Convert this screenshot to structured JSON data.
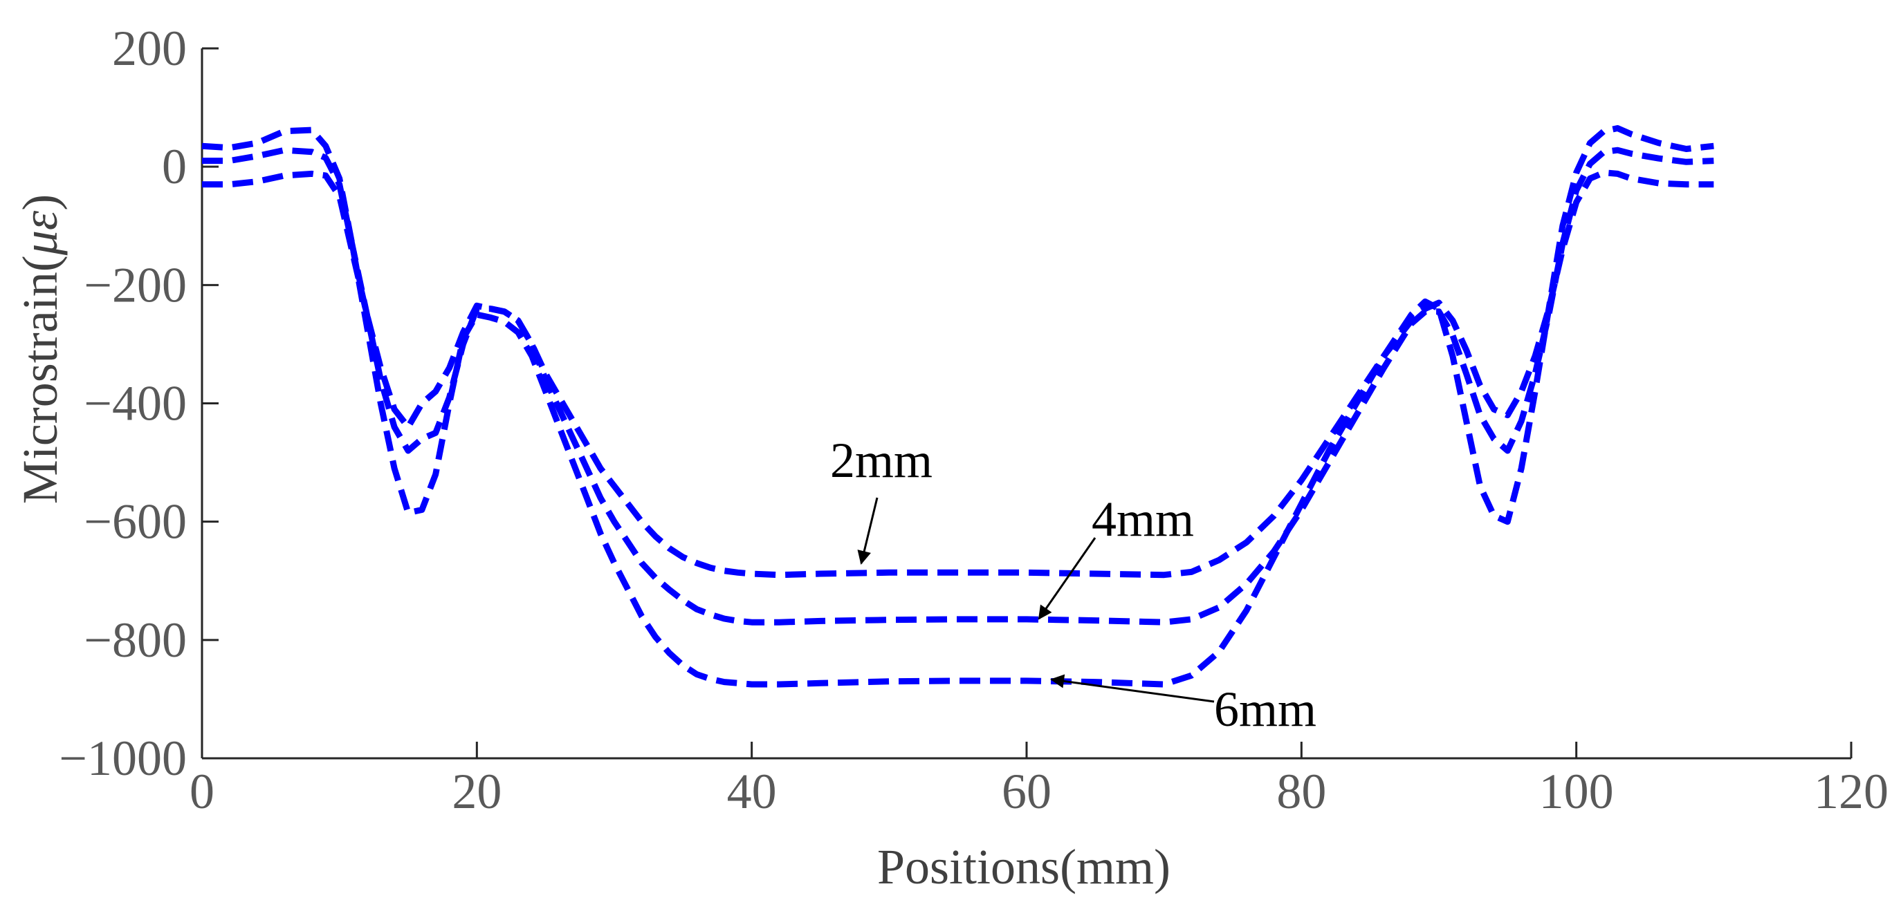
{
  "chart_data": {
    "type": "line",
    "title": "",
    "xlabel": "Positions(mm)",
    "ylabel": "Microstrain(",
    "ylabel_symbol": "με",
    "ylabel_close": ")",
    "xlim": [
      0,
      120
    ],
    "ylim": [
      -1000,
      200
    ],
    "xticks": [
      0,
      20,
      40,
      60,
      80,
      100,
      120
    ],
    "yticks": [
      200,
      0,
      -200,
      -400,
      -600,
      -800,
      -1000
    ],
    "xtick_labels": [
      "0",
      "20",
      "40",
      "60",
      "80",
      "100",
      "120"
    ],
    "ytick_labels": [
      "200",
      "0",
      "−200",
      "−400",
      "−600",
      "−800",
      "−1000"
    ],
    "grid": false,
    "line_color": "#0000ff",
    "line_style": "dashed",
    "series": [
      {
        "name": "2mm",
        "x": [
          0,
          2,
          4,
          6,
          8,
          9,
          10,
          11,
          12,
          13,
          14,
          15,
          16,
          17,
          18,
          19,
          20,
          21,
          22,
          23,
          24,
          25,
          26,
          27,
          28,
          29,
          30,
          31,
          32,
          33,
          34,
          35,
          36,
          37,
          38,
          39,
          40,
          42,
          45,
          50,
          55,
          60,
          65,
          70,
          72,
          74,
          76,
          78,
          80,
          82,
          84,
          86,
          88,
          89,
          90,
          91,
          92,
          93,
          94,
          95,
          96,
          97,
          98,
          99,
          100,
          101,
          102,
          103,
          104,
          106,
          108,
          110
        ],
        "y": [
          -30,
          -30,
          -25,
          -15,
          -12,
          -15,
          -50,
          -150,
          -250,
          -340,
          -410,
          -440,
          -400,
          -380,
          -340,
          -280,
          -235,
          -240,
          -245,
          -260,
          -300,
          -350,
          -390,
          -430,
          -470,
          -510,
          -540,
          -570,
          -600,
          -625,
          -645,
          -660,
          -670,
          -678,
          -683,
          -686,
          -688,
          -690,
          -688,
          -686,
          -686,
          -686,
          -688,
          -690,
          -685,
          -665,
          -635,
          -590,
          -530,
          -460,
          -390,
          -320,
          -260,
          -240,
          -230,
          -260,
          -310,
          -370,
          -410,
          -420,
          -380,
          -320,
          -240,
          -140,
          -60,
          -20,
          -10,
          -12,
          -20,
          -28,
          -30,
          -30
        ]
      },
      {
        "name": "4mm",
        "x": [
          0,
          2,
          4,
          6,
          8,
          9,
          10,
          11,
          12,
          13,
          14,
          15,
          16,
          17,
          18,
          19,
          20,
          21,
          22,
          23,
          24,
          25,
          26,
          27,
          28,
          29,
          30,
          31,
          32,
          33,
          34,
          35,
          36,
          37,
          38,
          39,
          40,
          42,
          45,
          50,
          55,
          60,
          65,
          70,
          72,
          74,
          76,
          78,
          80,
          82,
          84,
          86,
          88,
          89,
          90,
          91,
          92,
          93,
          94,
          95,
          96,
          97,
          98,
          99,
          100,
          101,
          102,
          103,
          104,
          106,
          108,
          110
        ],
        "y": [
          10,
          10,
          18,
          28,
          25,
          15,
          -30,
          -140,
          -250,
          -360,
          -440,
          -480,
          -460,
          -450,
          -390,
          -300,
          -240,
          -240,
          -245,
          -260,
          -300,
          -360,
          -410,
          -460,
          -510,
          -560,
          -600,
          -635,
          -670,
          -695,
          -715,
          -733,
          -748,
          -757,
          -764,
          -768,
          -770,
          -770,
          -768,
          -766,
          -765,
          -765,
          -767,
          -770,
          -765,
          -745,
          -705,
          -650,
          -580,
          -500,
          -420,
          -340,
          -265,
          -245,
          -245,
          -285,
          -350,
          -420,
          -460,
          -480,
          -430,
          -350,
          -250,
          -130,
          -40,
          5,
          25,
          28,
          22,
          14,
          8,
          10
        ]
      },
      {
        "name": "6mm",
        "x": [
          0,
          2,
          4,
          6,
          8,
          9,
          10,
          11,
          12,
          13,
          14,
          15,
          16,
          17,
          18,
          19,
          20,
          21,
          22,
          23,
          24,
          25,
          26,
          27,
          28,
          29,
          30,
          31,
          32,
          33,
          34,
          35,
          36,
          37,
          38,
          39,
          40,
          42,
          45,
          50,
          55,
          60,
          65,
          70,
          72,
          74,
          76,
          78,
          80,
          82,
          84,
          86,
          88,
          89,
          90,
          91,
          92,
          93,
          94,
          95,
          96,
          97,
          98,
          99,
          100,
          101,
          102,
          103,
          104,
          106,
          108,
          110
        ],
        "y": [
          35,
          32,
          40,
          60,
          62,
          35,
          -20,
          -140,
          -270,
          -400,
          -510,
          -585,
          -580,
          -520,
          -400,
          -290,
          -250,
          -255,
          -262,
          -280,
          -320,
          -380,
          -440,
          -500,
          -560,
          -620,
          -670,
          -715,
          -760,
          -795,
          -822,
          -843,
          -858,
          -866,
          -871,
          -873,
          -875,
          -875,
          -873,
          -870,
          -869,
          -869,
          -871,
          -875,
          -860,
          -820,
          -750,
          -660,
          -570,
          -480,
          -400,
          -320,
          -250,
          -228,
          -240,
          -320,
          -430,
          -540,
          -590,
          -600,
          -510,
          -380,
          -240,
          -100,
          -10,
          40,
          60,
          65,
          55,
          40,
          30,
          35
        ]
      }
    ],
    "annotations": [
      {
        "text": "2mm",
        "series": "2mm",
        "points_to": [
          48,
          -690
        ]
      },
      {
        "text": "4mm",
        "series": "4mm",
        "points_to": [
          61,
          -768
        ]
      },
      {
        "text": "6mm",
        "series": "6mm",
        "points_to": [
          62,
          -870
        ]
      }
    ]
  }
}
